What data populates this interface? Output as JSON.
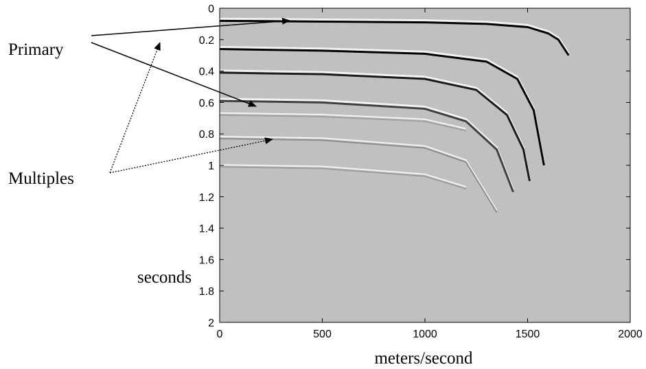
{
  "chart_data": {
    "type": "line",
    "background": "#c0c0c0",
    "xlabel": "meters/second",
    "ylabel": "seconds",
    "annotations": [
      "Primary",
      "Multiples"
    ],
    "xlim": [
      0,
      2000
    ],
    "ylim": [
      2,
      0
    ],
    "xticks": [
      0,
      500,
      1000,
      1500,
      2000
    ],
    "yticks": [
      0,
      0.2,
      0.4,
      0.6,
      0.8,
      1,
      1.2,
      1.4,
      1.6,
      1.8,
      2
    ],
    "series": [
      {
        "color": "#000000",
        "x": [
          0,
          500,
          1000,
          1300,
          1500,
          1600,
          1650,
          1700
        ],
        "values": [
          0.08,
          0.085,
          0.09,
          0.1,
          0.12,
          0.16,
          0.2,
          0.3
        ]
      },
      {
        "color": "#000000",
        "x": [
          0,
          500,
          1000,
          1300,
          1450,
          1530,
          1580
        ],
        "values": [
          0.26,
          0.27,
          0.29,
          0.34,
          0.45,
          0.65,
          1.0
        ]
      },
      {
        "color": "#1a1a1a",
        "x": [
          0,
          500,
          1000,
          1250,
          1400,
          1480,
          1510
        ],
        "values": [
          0.41,
          0.42,
          0.45,
          0.52,
          0.68,
          0.9,
          1.1
        ]
      },
      {
        "color": "#404040",
        "x": [
          0,
          500,
          1000,
          1200,
          1350,
          1430
        ],
        "values": [
          0.59,
          0.6,
          0.64,
          0.72,
          0.9,
          1.17
        ]
      },
      {
        "color": "#a0a0a0",
        "x": [
          0,
          500,
          1000,
          1200
        ],
        "values": [
          0.68,
          0.69,
          0.72,
          0.78
        ]
      },
      {
        "color": "#8c8c8c",
        "x": [
          0,
          500,
          1000,
          1200,
          1350
        ],
        "values": [
          0.83,
          0.84,
          0.89,
          0.98,
          1.3
        ]
      },
      {
        "color": "#9c9c9c",
        "x": [
          0,
          500,
          1000,
          1200
        ],
        "values": [
          1.01,
          1.02,
          1.07,
          1.15
        ]
      }
    ]
  }
}
